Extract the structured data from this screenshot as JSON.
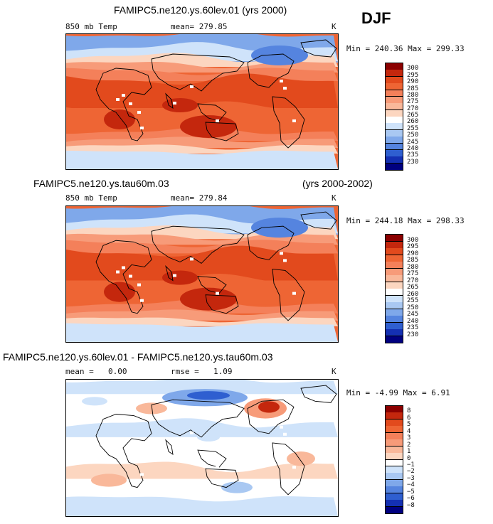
{
  "season": "DJF",
  "chart_data": [
    {
      "type": "heatmap",
      "title": "FAMIPC5.ne120.ys.60lev.01 (yrs 2000)",
      "variable": "850 mb Temp",
      "stat_label": "mean= 279.85",
      "units": "K",
      "min": 240.36,
      "max": 299.33,
      "minmax_text": "Min = 240.36 Max = 299.33",
      "colorbar_levels": [
        300,
        295,
        290,
        285,
        280,
        275,
        270,
        265,
        260,
        255,
        250,
        245,
        240,
        235,
        230
      ],
      "colorbar_colors": [
        "#8b0000",
        "#c4270d",
        "#e24a1d",
        "#ee6534",
        "#f4805a",
        "#f79b79",
        "#f9b89a",
        "#fcd6c0",
        "#ffffff",
        "#cfe3fa",
        "#a9c8f2",
        "#7fa8ea",
        "#5584df",
        "#2f5fd0",
        "#1430b3",
        "#000080"
      ]
    },
    {
      "type": "heatmap",
      "title": "FAMIPC5.ne120.ys.tau60m.03",
      "years": "(yrs 2000-2002)",
      "variable": "850 mb Temp",
      "stat_label": "mean= 279.84",
      "units": "K",
      "min": 244.18,
      "max": 298.33,
      "minmax_text": "Min = 244.18 Max = 298.33",
      "colorbar_levels": [
        300,
        295,
        290,
        285,
        280,
        275,
        270,
        265,
        260,
        255,
        250,
        245,
        240,
        235,
        230
      ],
      "colorbar_colors": [
        "#8b0000",
        "#c4270d",
        "#e24a1d",
        "#ee6534",
        "#f4805a",
        "#f79b79",
        "#f9b89a",
        "#fcd6c0",
        "#ffffff",
        "#cfe3fa",
        "#a9c8f2",
        "#7fa8ea",
        "#5584df",
        "#2f5fd0",
        "#1430b3",
        "#000080"
      ]
    },
    {
      "type": "heatmap",
      "title": "FAMIPC5.ne120.ys.60lev.01 - FAMIPC5.ne120.ys.tau60m.03",
      "mean_label": "mean =",
      "mean_value": "0.00",
      "rmse_label": "rmse =",
      "rmse_value": "1.09",
      "units": "K",
      "min": -4.99,
      "max": 6.91,
      "minmax_text": "Min =  -4.99 Max =    6.91",
      "colorbar_levels": [
        "8",
        "6",
        "5",
        "4",
        "3",
        "2",
        "1",
        "0",
        "−1",
        "−2",
        "−3",
        "−4",
        "−5",
        "−6",
        "−8"
      ],
      "colorbar_colors": [
        "#8b0000",
        "#c4270d",
        "#e24a1d",
        "#ee6534",
        "#f4805a",
        "#f79b79",
        "#f9b89a",
        "#fcd6c0",
        "#ffffff",
        "#cfe3fa",
        "#a9c8f2",
        "#7fa8ea",
        "#5584df",
        "#2f5fd0",
        "#1430b3",
        "#000080"
      ]
    }
  ]
}
